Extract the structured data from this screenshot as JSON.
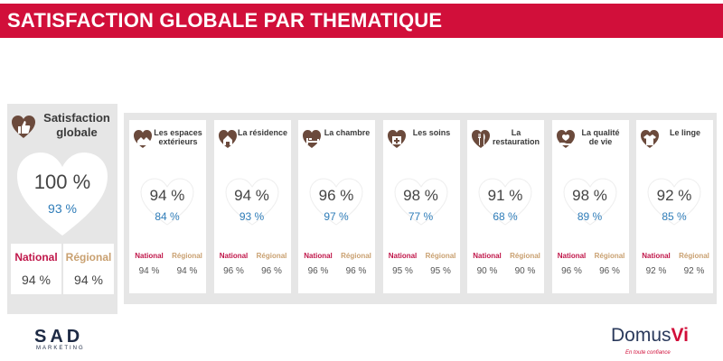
{
  "title": "SATISFACTION GLOBALE PAR THEMATIQUE",
  "colors": {
    "accent": "#d10f3a",
    "national": "#c0174a",
    "regional": "#c9a070",
    "regional_value": "#2e7cb8",
    "heart": "#ffffff"
  },
  "global": {
    "icon": "thumbs-up-icon",
    "title_line1": "Satisfaction",
    "title_line2": "globale",
    "value": "100 %",
    "regional_value": "93 %",
    "national_label": "National",
    "national_value": "94 %",
    "regional_label": "Régional",
    "regional_comp_value": "94 %"
  },
  "themes": [
    {
      "icon": "houses-icon",
      "title_line1": "Les espaces",
      "title_line2": "extérieurs",
      "value": "94 %",
      "regional_value": "84 %",
      "national_label": "National",
      "national_value": "94 %",
      "regional_label": "Régional",
      "regional_comp_value": "94 %"
    },
    {
      "icon": "house-icon",
      "title_line1": "La résidence",
      "title_line2": "",
      "value": "94 %",
      "regional_value": "93 %",
      "national_label": "National",
      "national_value": "96 %",
      "regional_label": "Régional",
      "regional_comp_value": "96 %"
    },
    {
      "icon": "bed-icon",
      "title_line1": "La chambre",
      "title_line2": "",
      "value": "96 %",
      "regional_value": "97 %",
      "national_label": "National",
      "national_value": "96 %",
      "regional_label": "Régional",
      "regional_comp_value": "96 %"
    },
    {
      "icon": "medical-kit-icon",
      "title_line1": "Les soins",
      "title_line2": "",
      "value": "98 %",
      "regional_value": "77 %",
      "national_label": "National",
      "national_value": "95 %",
      "regional_label": "Régional",
      "regional_comp_value": "95 %"
    },
    {
      "icon": "cutlery-icon",
      "title_line1": "La",
      "title_line2": "restauration",
      "value": "91 %",
      "regional_value": "68 %",
      "national_label": "National",
      "national_value": "90 %",
      "regional_label": "Régional",
      "regional_comp_value": "90 %"
    },
    {
      "icon": "heart-hand-icon",
      "title_line1": "La qualité",
      "title_line2": "de vie",
      "value": "98 %",
      "regional_value": "89 %",
      "national_label": "National",
      "national_value": "96 %",
      "regional_label": "Régional",
      "regional_comp_value": "96 %"
    },
    {
      "icon": "shirt-icon",
      "title_line1": "Le linge",
      "title_line2": "",
      "value": "92 %",
      "regional_value": "85 %",
      "national_label": "National",
      "national_value": "92 %",
      "regional_label": "Régional",
      "regional_comp_value": "92 %"
    }
  ],
  "logos": {
    "left_name": "SAD",
    "left_sub": "MARKETING",
    "right_name_a": "Domus",
    "right_name_b": "Vi",
    "right_tag": "En toute confiance"
  }
}
